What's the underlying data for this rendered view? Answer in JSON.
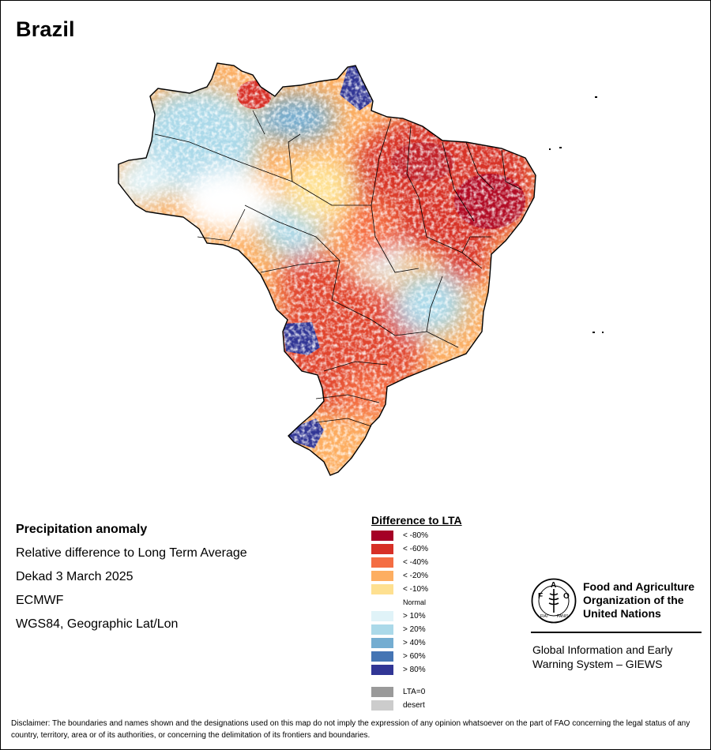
{
  "map": {
    "title": "Brazil"
  },
  "info": {
    "heading": "Precipitation anomaly",
    "line1": "Relative difference to Long Term Average",
    "line2": "Dekad 3 March 2025",
    "line3": "ECMWF",
    "line4": "WGS84, Geographic Lat/Lon"
  },
  "legend": {
    "title": "Difference to LTA",
    "classes": [
      {
        "label": "< -80%",
        "color": "#a50026"
      },
      {
        "label": "< -60%",
        "color": "#d73027"
      },
      {
        "label": "< -40%",
        "color": "#f46d43"
      },
      {
        "label": "< -20%",
        "color": "#fdae61"
      },
      {
        "label": "< -10%",
        "color": "#fee090"
      },
      {
        "label": "Normal",
        "color": "#ffffff"
      },
      {
        "label": "> 10%",
        "color": "#e0f3f8"
      },
      {
        "label": "> 20%",
        "color": "#abd9e9"
      },
      {
        "label": "> 40%",
        "color": "#74add1"
      },
      {
        "label": "> 60%",
        "color": "#4575b4"
      },
      {
        "label": "> 80%",
        "color": "#313695"
      }
    ],
    "extra": [
      {
        "label": "LTA=0",
        "color": "#9a9a9a"
      },
      {
        "label": "desert",
        "color": "#cccccc"
      }
    ]
  },
  "org": {
    "name": "Food and Agriculture Organization of the United Nations",
    "logo_text": "FAO",
    "logo_motto": "FIAT PANIS",
    "system": "Global Information and Early Warning System – GIEWS"
  },
  "disclaimer": "Disclaimer: The boundaries and names shown and the designations used on this map do not imply the expression of any opinion whatsoever on the part of FAO concerning the legal status of any country, territory, area or of its authorities, or concerning the delimitation of its frontiers and boundaries."
}
